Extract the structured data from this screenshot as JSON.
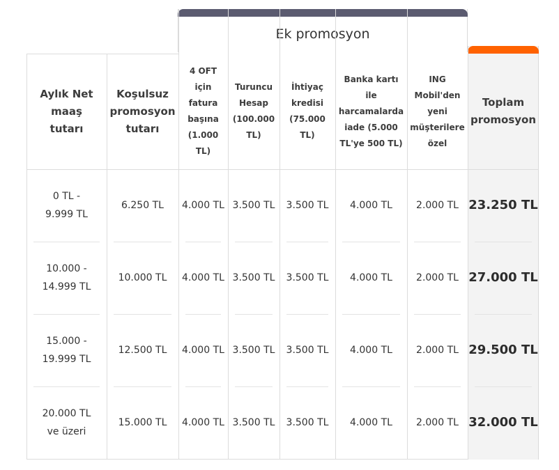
{
  "group_header": "Ek promosyon",
  "columns": [
    "Aylık Net maaş tutarı",
    "Koşulsuz promosyon tutarı",
    "4 OFT için fatura başına (1.000 TL)",
    "Turuncu Hesap (100.000 TL)",
    "İhtiyaç kredisi (75.000 TL)",
    "Banka kartı ile harcamalarda iade (5.000 TL'ye 500 TL)",
    "ING Mobil'den yeni müşterilere özel",
    "Toplam promosyon"
  ],
  "rows": [
    [
      "0 TL - 9.999 TL",
      "6.250 TL",
      "4.000 TL",
      "3.500 TL",
      "3.500 TL",
      "4.000 TL",
      "2.000 TL",
      "23.250 TL"
    ],
    [
      "10.000 - 14.999 TL",
      "10.000 TL",
      "4.000 TL",
      "3.500 TL",
      "3.500 TL",
      "4.000 TL",
      "2.000 TL",
      "27.000 TL"
    ],
    [
      "15.000 - 19.999 TL",
      "12.500 TL",
      "4.000 TL",
      "3.500 TL",
      "3.500 TL",
      "4.000 TL",
      "2.000 TL",
      "29.500 TL"
    ],
    [
      "20.000 TL ve üzeri",
      "15.000 TL",
      "4.000 TL",
      "3.500 TL",
      "3.500 TL",
      "4.000 TL",
      "2.000 TL",
      "32.000 TL"
    ]
  ],
  "colors": {
    "group_bar": "#5b5b70",
    "total_bar": "#ff6200",
    "total_bg": "#f3f3f3"
  }
}
